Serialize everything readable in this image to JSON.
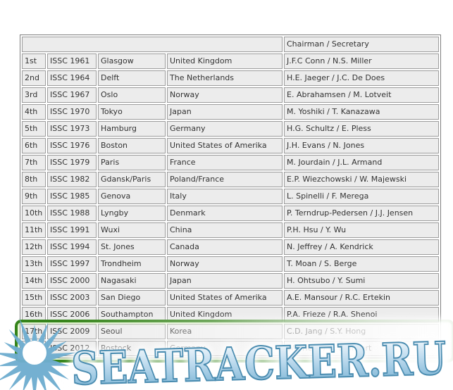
{
  "colors": {
    "cell_bg": "#ececec",
    "cell_border": "#9c9c9c",
    "table_border": "#7e7e7e",
    "text": "#333333",
    "highlight_green": "#35841a",
    "highlight_glow": "#7ec253",
    "watermark_blue": "#6fadd0",
    "watermark_blue_light": "#c3def0",
    "watermark_outline": "#4a8cb0"
  },
  "watermark": {
    "text": "SEATRACKER.RU"
  },
  "table": {
    "header": {
      "chairman_label": "Chairman / Secretary"
    },
    "rows": [
      {
        "ordinal": "1st",
        "congress": "ISSC 1961",
        "city": "Glasgow",
        "country": "United Kingdom",
        "chairman_secretary": "J.F.C Conn / N.S. Miller"
      },
      {
        "ordinal": "2nd",
        "congress": "ISSC 1964",
        "city": "Delft",
        "country": "The Netherlands",
        "chairman_secretary": "H.E. Jaeger / J.C. De Does"
      },
      {
        "ordinal": "3rd",
        "congress": "ISSC 1967",
        "city": "Oslo",
        "country": "Norway",
        "chairman_secretary": "E. Abrahamsen / M. Lotveit"
      },
      {
        "ordinal": "4th",
        "congress": "ISSC 1970",
        "city": "Tokyo",
        "country": "Japan",
        "chairman_secretary": "M. Yoshiki / T. Kanazawa"
      },
      {
        "ordinal": "5th",
        "congress": "ISSC 1973",
        "city": "Hamburg",
        "country": "Germany",
        "chairman_secretary": "H.G. Schultz / E. Pless"
      },
      {
        "ordinal": "6th",
        "congress": "ISSC 1976",
        "city": "Boston",
        "country": "United States of Amerika",
        "chairman_secretary": "J.H. Evans / N. Jones"
      },
      {
        "ordinal": "7th",
        "congress": "ISSC 1979",
        "city": "Paris",
        "country": "France",
        "chairman_secretary": "M. Jourdain / J.L. Armand"
      },
      {
        "ordinal": "8th",
        "congress": "ISSC 1982",
        "city": "Gdansk/Paris",
        "country": "Poland/France",
        "chairman_secretary": "E.P. Wiezchowski / W. Majewski"
      },
      {
        "ordinal": "9th",
        "congress": "ISSC 1985",
        "city": "Genova",
        "country": "Italy",
        "chairman_secretary": "L. Spinelli / F. Merega"
      },
      {
        "ordinal": "10th",
        "congress": "ISSC 1988",
        "city": "Lyngby",
        "country": "Denmark",
        "chairman_secretary": "P. Terndrup-Pedersen / J.J. Jensen"
      },
      {
        "ordinal": "11th",
        "congress": "ISSC 1991",
        "city": "Wuxi",
        "country": "China",
        "chairman_secretary": "P.H. Hsu / Y. Wu"
      },
      {
        "ordinal": "12th",
        "congress": "ISSC 1994",
        "city": "St. Jones",
        "country": "Canada",
        "chairman_secretary": "N. Jeffrey / A. Kendrick"
      },
      {
        "ordinal": "13th",
        "congress": "ISSC 1997",
        "city": "Trondheim",
        "country": "Norway",
        "chairman_secretary": "T. Moan / S. Berge"
      },
      {
        "ordinal": "14th",
        "congress": "ISSC 2000",
        "city": "Nagasaki",
        "country": "Japan",
        "chairman_secretary": "H. Ohtsubo / Y. Sumi"
      },
      {
        "ordinal": "15th",
        "congress": "ISSC 2003",
        "city": "San Diego",
        "country": "United States of Amerika",
        "chairman_secretary": "A.E. Mansour / R.C. Ertekin"
      },
      {
        "ordinal": "16th",
        "congress": "ISSC 2006",
        "city": "Southampton",
        "country": "United Kingdom",
        "chairman_secretary": "P.A. Frieze / R.A. Shenoi"
      },
      {
        "ordinal": "17th",
        "congress": "ISSC 2009",
        "city": "Seoul",
        "country": "Korea",
        "chairman_secretary": "C.D. Jang / S.Y. Hong"
      },
      {
        "ordinal": "18th",
        "congress": "ISSC 2012",
        "city": "Rostock",
        "country": "Germany",
        "chairman_secretary": "W. Fricke / R. Bronsart"
      }
    ]
  }
}
